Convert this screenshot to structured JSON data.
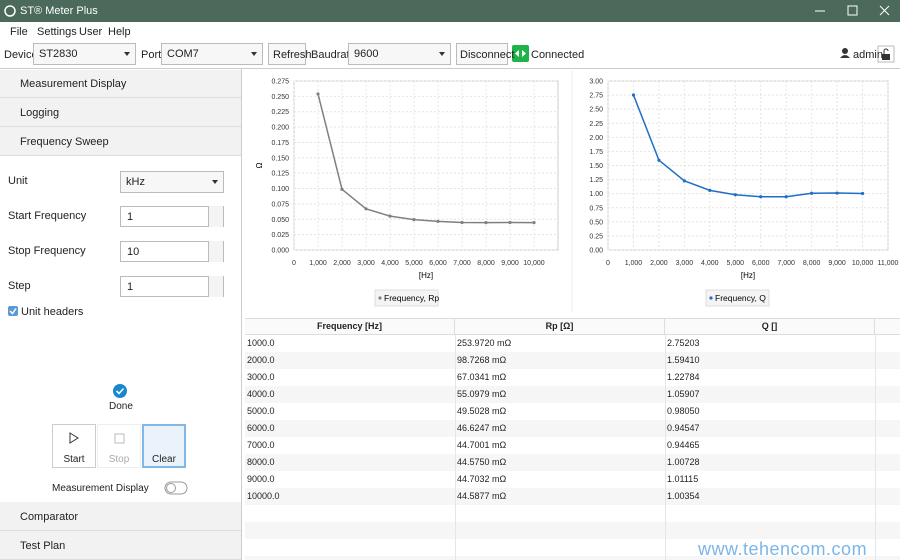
{
  "window": {
    "title": "ST® Meter Plus"
  },
  "menu": [
    "File",
    "Settings",
    "User",
    "Help"
  ],
  "toolbar": {
    "device_label": "Device",
    "device": "ST2830",
    "port_label": "Port",
    "port": "COM7",
    "refresh": "Refresh",
    "baudrate_label": "Baudrate",
    "baudrate": "9600",
    "disconnect": "Disconnect",
    "status": "Connected",
    "user": "admin"
  },
  "sidebar": {
    "sections_top": [
      "Measurement Display",
      "Logging",
      "Frequency Sweep"
    ],
    "fields": [
      {
        "label": "Unit",
        "value": "kHz"
      },
      {
        "label": "Start Frequency",
        "value": "1"
      },
      {
        "label": "Stop Frequency",
        "value": "10"
      },
      {
        "label": "Step",
        "value": "1"
      }
    ],
    "checkbox": "Unit headers",
    "status": "Done",
    "buttons": [
      "Start",
      "Stop",
      "Clear"
    ],
    "toggle": "Measurement Display",
    "sections_bottom": [
      "Comparator",
      "Test Plan"
    ]
  },
  "chart_data": [
    {
      "type": "line",
      "xlabel": "[Hz]",
      "ylabel": "Ω",
      "grid": true,
      "x": [
        1000,
        2000,
        3000,
        4000,
        5000,
        6000,
        7000,
        8000,
        9000,
        10000
      ],
      "series": [
        {
          "name": "Frequency, Rp",
          "color": "#808080",
          "values": [
            0.253972,
            0.0987268,
            0.0670341,
            0.0550979,
            0.0495028,
            0.0466247,
            0.0447001,
            0.044575,
            0.0447032,
            0.0445877
          ]
        }
      ],
      "xlim": [
        0,
        11000
      ],
      "xticks": [
        0,
        {
          "value": 1000,
          "label": "1,000"
        },
        {
          "value": 2000,
          "label": "2,000"
        },
        {
          "value": 3000,
          "label": "3,000"
        },
        {
          "value": 4000,
          "label": "4,000"
        },
        {
          "value": 5000,
          "label": "5,000"
        },
        {
          "value": 6000,
          "label": "6,000"
        },
        {
          "value": 7000,
          "label": "7,000"
        },
        {
          "value": 8000,
          "label": "8,000"
        },
        {
          "value": 9000,
          "label": "9,000"
        },
        {
          "value": 10000,
          "label": "10,000"
        }
      ],
      "ylim": [
        0,
        0.275
      ],
      "yticks": [
        {
          "value": 0,
          "label": "0.000"
        },
        0.025,
        {
          "value": 0.05,
          "label": "0.050"
        },
        0.075,
        {
          "value": 0.1,
          "label": "0.100"
        },
        0.125,
        {
          "value": 0.15,
          "label": "0.150"
        },
        0.175,
        {
          "value": 0.2,
          "label": "0.200"
        },
        0.225,
        {
          "value": 0.25,
          "label": "0.250"
        },
        0.275
      ]
    },
    {
      "type": "line",
      "xlabel": "[Hz]",
      "grid": true,
      "x": [
        1000,
        2000,
        3000,
        4000,
        5000,
        6000,
        7000,
        8000,
        9000,
        10000
      ],
      "series": [
        {
          "name": "Frequency, Q",
          "color": "#1f6fc6",
          "values": [
            2.75203,
            1.5941,
            1.22784,
            1.05907,
            0.9805,
            0.94547,
            0.94465,
            1.00728,
            1.01115,
            1.00354
          ]
        }
      ],
      "xlim": [
        0,
        11000
      ],
      "xticks": [
        0,
        {
          "value": 1000,
          "label": "1,000"
        },
        {
          "value": 2000,
          "label": "2,000"
        },
        {
          "value": 3000,
          "label": "3,000"
        },
        {
          "value": 4000,
          "label": "4,000"
        },
        {
          "value": 5000,
          "label": "5,000"
        },
        {
          "value": 6000,
          "label": "6,000"
        },
        {
          "value": 7000,
          "label": "7,000"
        },
        {
          "value": 8000,
          "label": "8,000"
        },
        {
          "value": 9000,
          "label": "9,000"
        },
        {
          "value": 10000,
          "label": "10,000"
        },
        {
          "value": 11000,
          "label": "11,000"
        }
      ],
      "ylim": [
        0,
        3
      ],
      "yticks": [
        {
          "value": 0,
          "label": "0.00"
        },
        0.25,
        {
          "value": 0.5,
          "label": "0.50"
        },
        0.75,
        {
          "value": 1,
          "label": "1.00"
        },
        1.25,
        {
          "value": 1.5,
          "label": "1.50"
        },
        1.75,
        {
          "value": 2,
          "label": "2.00"
        },
        2.25,
        {
          "value": 2.5,
          "label": "2.50"
        },
        2.75,
        {
          "value": 3,
          "label": "3.00"
        }
      ]
    }
  ],
  "table": {
    "columns": [
      "Frequency [Hz]",
      "Rp [Ω]",
      "Q []"
    ],
    "rows": [
      [
        "1000.0",
        "253.9720 mΩ",
        "2.75203"
      ],
      [
        "2000.0",
        "98.7268 mΩ",
        "1.59410"
      ],
      [
        "3000.0",
        "67.0341 mΩ",
        "1.22784"
      ],
      [
        "4000.0",
        "55.0979 mΩ",
        "1.05907"
      ],
      [
        "5000.0",
        "49.5028 mΩ",
        "0.98050"
      ],
      [
        "6000.0",
        "46.6247 mΩ",
        "0.94547"
      ],
      [
        "7000.0",
        "44.7001 mΩ",
        "0.94465"
      ],
      [
        "8000.0",
        "44.5750 mΩ",
        "1.00728"
      ],
      [
        "9000.0",
        "44.7032 mΩ",
        "1.01115"
      ],
      [
        "10000.0",
        "44.5877 mΩ",
        "1.00354"
      ]
    ]
  },
  "watermark": "www.tehencom.com"
}
